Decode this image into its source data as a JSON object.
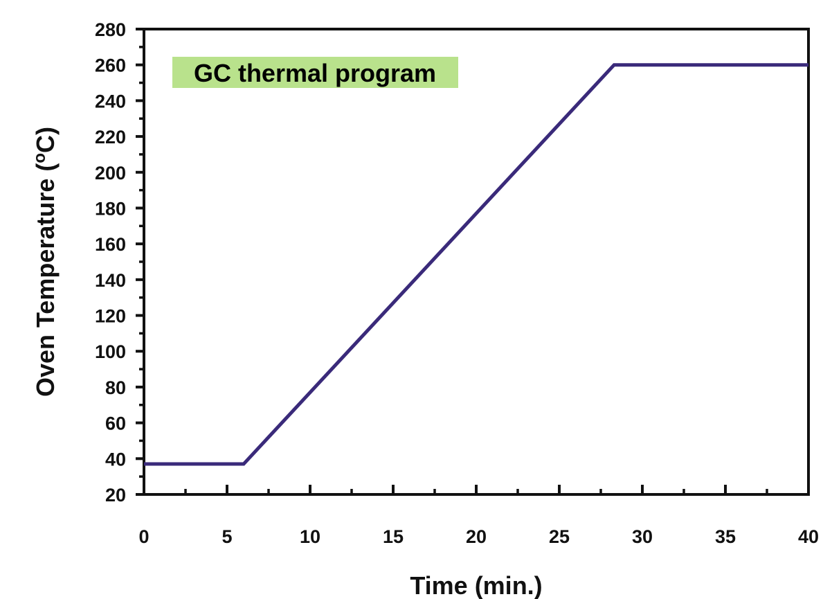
{
  "chart_data": {
    "type": "line",
    "title": "",
    "xlabel": "Time (min.)",
    "ylabel_main": "Oven Temperature (",
    "ylabel_sup": "o",
    "ylabel_end": "C)",
    "xlim": [
      0,
      40
    ],
    "ylim": [
      20,
      280
    ],
    "x_ticks": [
      0,
      5,
      10,
      15,
      20,
      25,
      30,
      35,
      40
    ],
    "x_minor_step": 2.5,
    "y_ticks": [
      20,
      40,
      60,
      80,
      100,
      120,
      140,
      160,
      180,
      200,
      220,
      240,
      260,
      280
    ],
    "y_minor_step": 10,
    "grid": false,
    "series": [
      {
        "x": [
          0,
          6,
          28.3,
          40
        ],
        "y": [
          37,
          37,
          260,
          260
        ]
      }
    ],
    "annotation": {
      "text": "GC thermal program",
      "background": "#b9e28c"
    },
    "colors": {
      "line": "#3a2a7a",
      "axis": "#111111"
    }
  }
}
